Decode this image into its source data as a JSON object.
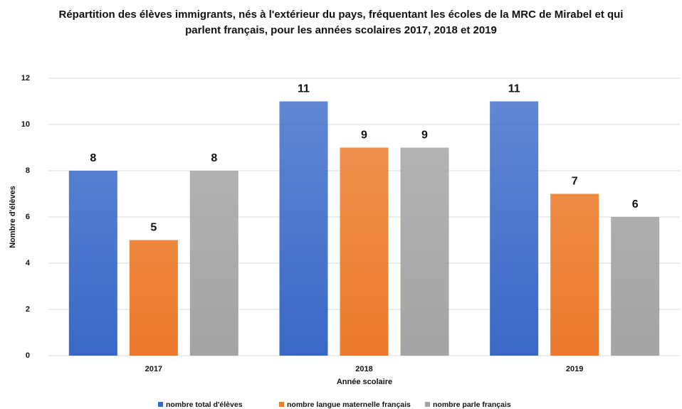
{
  "chart_data": {
    "type": "bar",
    "title": "Répartition des élèves immigrants, nés à l'extérieur du pays, fréquentant les écoles de la MRC de Mirabel et qui parlent français, pour les années scolaires 2017, 2018 et 2019",
    "x_label": "Année scolaire",
    "y_label": "Nombre d'élèves",
    "categories": [
      "2017",
      "2018",
      "2019"
    ],
    "series": [
      {
        "name": "nombre total d'élèves",
        "color": "#3a68c8",
        "values": [
          8,
          11,
          11
        ]
      },
      {
        "name": "nombre langue maternelle français",
        "color": "#ec7a2a",
        "values": [
          5,
          9,
          7
        ]
      },
      {
        "name": "nombre parle français",
        "color": "#a4a4a4",
        "values": [
          8,
          9,
          6
        ]
      }
    ],
    "ylim": [
      0,
      12
    ],
    "yticks": [
      0,
      2,
      4,
      6,
      8,
      10,
      12
    ],
    "grid": true,
    "legend": "bottom"
  }
}
